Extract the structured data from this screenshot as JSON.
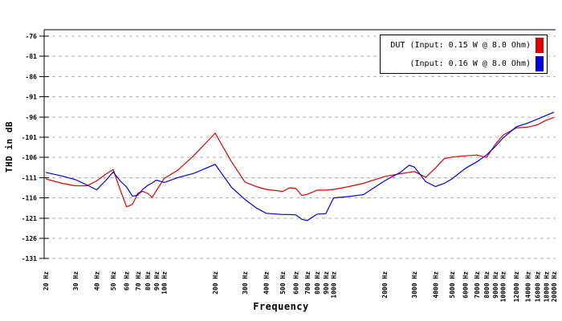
{
  "chart_data": {
    "type": "line",
    "title": "",
    "xlabel": "Frequency",
    "ylabel": "THD in dB",
    "x_scale": "log",
    "xlim": [
      20,
      20000
    ],
    "ylim": [
      -131,
      -74.4
    ],
    "grid": "horizontal dashed gray lines at each 5 dB step",
    "legend_position": "top-right",
    "x_ticks": [
      20,
      30,
      40,
      50,
      60,
      70,
      80,
      90,
      100,
      200,
      300,
      400,
      500,
      600,
      700,
      800,
      900,
      1000,
      2000,
      3000,
      4000,
      5000,
      6000,
      7000,
      8000,
      9000,
      10000,
      12000,
      14000,
      16000,
      18000,
      20000
    ],
    "x_tick_labels": [
      "20 Hz",
      "30 Hz",
      "40 Hz",
      "50 Hz",
      "60 Hz",
      "70 Hz",
      "80 Hz",
      "90 Hz",
      "100 Hz",
      "200 Hz",
      "300 Hz",
      "400 Hz",
      "500 Hz",
      "600 Hz",
      "700 Hz",
      "800 Hz",
      "900 Hz",
      "1000 Hz",
      "2000 Hz",
      "3000 Hz",
      "4000 Hz",
      "5000 Hz",
      "6000 Hz",
      "7000 Hz",
      "8000 Hz",
      "9000 Hz",
      "10000 Hz",
      "12000 Hz",
      "14000 Hz",
      "16000 Hz",
      "18000 Hz",
      "20000 Hz"
    ],
    "y_ticks": [
      -76,
      -81,
      -86,
      -91,
      -96,
      -101,
      -106,
      -111,
      -116,
      -121,
      -126,
      -131
    ],
    "frequencies_hz": [
      20,
      25,
      30,
      35,
      40,
      45,
      50,
      55,
      60,
      65,
      70,
      75,
      80,
      85,
      90,
      100,
      120,
      150,
      200,
      250,
      300,
      350,
      400,
      500,
      550,
      600,
      650,
      700,
      800,
      900,
      1000,
      1200,
      1500,
      2000,
      2500,
      2800,
      3000,
      3500,
      4000,
      4500,
      5000,
      6000,
      7000,
      8000,
      9000,
      10000,
      12000,
      14000,
      16000,
      18000,
      20000
    ],
    "series": [
      {
        "name": "DUT (Input: 0.15 W @ 8.0 Ohm)",
        "color": "#dd0000",
        "values_db": [
          -111.3,
          -112.4,
          -113.0,
          -113.0,
          -111.8,
          -110.2,
          -109.0,
          -114.0,
          -118.2,
          -117.6,
          -114.8,
          -114.4,
          -114.9,
          -115.9,
          -114.2,
          -111.2,
          -109.2,
          -105.5,
          -100.0,
          -107.1,
          -112.1,
          -113.2,
          -113.9,
          -114.4,
          -113.5,
          -113.7,
          -115.4,
          -115.1,
          -114.1,
          -114.1,
          -113.9,
          -113.3,
          -112.4,
          -110.7,
          -110.0,
          -109.7,
          -109.5,
          -110.9,
          -108.6,
          -106.3,
          -105.9,
          -105.6,
          -105.4,
          -106.0,
          -102.8,
          -100.5,
          -98.7,
          -98.5,
          -97.9,
          -96.8,
          -96.1
        ]
      },
      {
        "name": "(Input: 0.16 W @ 8.0 Ohm)",
        "color": "#0000dd",
        "values_db": [
          -109.7,
          -110.6,
          -111.5,
          -112.8,
          -114.0,
          -111.8,
          -109.6,
          -111.8,
          -113.3,
          -115.6,
          -115.3,
          -113.8,
          -112.9,
          -112.3,
          -111.6,
          -112.2,
          -111.0,
          -109.9,
          -107.7,
          -113.4,
          -116.4,
          -118.5,
          -119.8,
          -120.1,
          -120.1,
          -120.2,
          -121.3,
          -121.6,
          -120.0,
          -119.9,
          -116.0,
          -115.7,
          -115.2,
          -111.8,
          -109.6,
          -107.9,
          -108.4,
          -112.0,
          -113.2,
          -112.4,
          -111.3,
          -108.7,
          -107.1,
          -105.4,
          -103.3,
          -101.2,
          -98.4,
          -97.5,
          -96.5,
          -95.6,
          -94.8
        ]
      }
    ]
  },
  "colors": {
    "background": "#ffffff",
    "axis": "#000000",
    "grid": "#b0b0b0",
    "series_red": "#dd0000",
    "series_blue": "#0000dd"
  }
}
